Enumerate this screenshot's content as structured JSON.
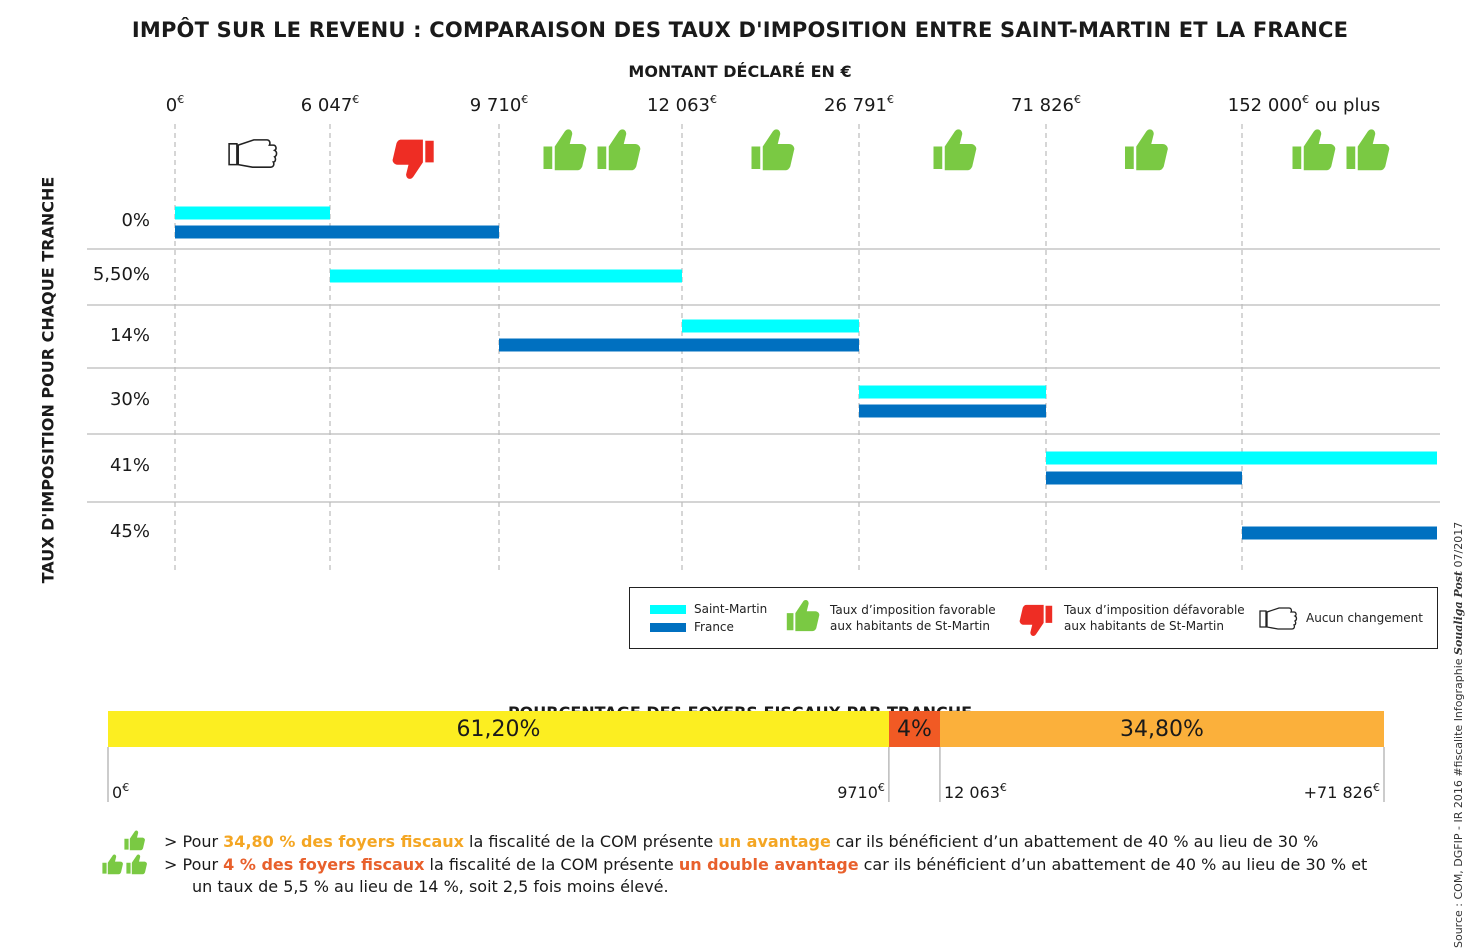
{
  "title": "IMPÔT SUR LE REVENU : COMPARAISON DES TAUX D'IMPOSITION ENTRE SAINT-MARTIN ET LA FRANCE",
  "xlabel": "MONTANT DÉCLARÉ EN €",
  "ylabel": "TAUX D'IMPOSITION POUR CHAQUE TRANCHE",
  "colors": {
    "saint_martin": "#00ffff",
    "france": "#0070c0",
    "favorable": "#7ac943",
    "unfavorable": "#ee2d24",
    "unchanged": "#ffffff",
    "grid": "#bbbbbb",
    "seg_low": "#fcee21",
    "seg_mid": "#f15a24",
    "seg_high": "#fbb03b",
    "hl_a": "#f4a623",
    "hl_b": "#e8602c"
  },
  "chart_data": [
    {
      "type": "bar",
      "orientation": "horizontal-range",
      "title": "IMPÔT SUR LE REVENU : COMPARAISON DES TAUX D'IMPOSITION ENTRE SAINT-MARTIN ET LA FRANCE",
      "xlabel": "MONTANT DÉCLARÉ EN €",
      "ylabel": "TAUX D'IMPOSITION POUR CHAQUE TRANCHE",
      "x_ticks": [
        {
          "value": "0",
          "unit": "€"
        },
        {
          "value": "6 047",
          "unit": "€"
        },
        {
          "value": "9 710",
          "unit": "€"
        },
        {
          "value": "12 063",
          "unit": "€"
        },
        {
          "value": "26 791",
          "unit": "€"
        },
        {
          "value": "71 826",
          "unit": "€"
        },
        {
          "value": "152 000",
          "unit": "€",
          "suffix": " ou plus"
        }
      ],
      "categories": [
        "0%",
        "5,50%",
        "14%",
        "30%",
        "41%",
        "45%"
      ],
      "series": [
        {
          "name": "Saint-Martin",
          "ranges": [
            {
              "category": "0%",
              "from": 0,
              "to": 6047
            },
            {
              "category": "5,50%",
              "from": 6047,
              "to": 12063
            },
            {
              "category": "14%",
              "from": 12063,
              "to": 26791
            },
            {
              "category": "30%",
              "from": 26791,
              "to": 71826
            },
            {
              "category": "41%",
              "from": 71826,
              "to": "152 000 ou plus"
            }
          ]
        },
        {
          "name": "France",
          "ranges": [
            {
              "category": "0%",
              "from": 0,
              "to": 9710
            },
            {
              "category": "14%",
              "from": 9710,
              "to": 26791
            },
            {
              "category": "30%",
              "from": 26791,
              "to": 71826
            },
            {
              "category": "41%",
              "from": 71826,
              "to": 152000
            },
            {
              "category": "45%",
              "from": 152000,
              "to": "152 000 ou plus"
            }
          ]
        }
      ],
      "band_icons": [
        "neutral",
        "unfavorable",
        "favorable-double",
        "favorable",
        "favorable",
        "favorable",
        "favorable-double"
      ],
      "legend": {
        "placement": "bottom-right",
        "items": [
          {
            "label": "Saint-Martin",
            "icon": "swatch-cyan"
          },
          {
            "label": "France",
            "icon": "swatch-blue"
          },
          {
            "label": "Taux d’imposition favorable",
            "label2": "aux habitants de St-Martin",
            "icon": "thumbs-up-icon"
          },
          {
            "label": "Taux d’imposition défavorable",
            "label2": "aux habitants de St-Martin",
            "icon": "thumbs-down-icon"
          },
          {
            "label": "Aucun changement",
            "icon": "thumb-neutral-icon"
          }
        ]
      },
      "grid": true
    },
    {
      "type": "bar",
      "orientation": "stacked-horizontal",
      "title": "POURCENTAGE DES FOYERS FISCAUX PAR TRANCHE",
      "segments": [
        {
          "label": "61,20%",
          "value": 61.2
        },
        {
          "label": "4%",
          "value": 4.0
        },
        {
          "label": "34,80%",
          "value": 34.8
        }
      ],
      "ticks": [
        {
          "value": "0",
          "unit": "€"
        },
        {
          "value": "9710",
          "unit": "€"
        },
        {
          "value": "12 063",
          "unit": "€"
        },
        {
          "value": "+71 826",
          "unit": "€"
        }
      ]
    }
  ],
  "notes": [
    {
      "prefix": "> Pour ",
      "highlight": "34,80 % des foyers fiscaux",
      "mid": " la fiscalité de la COM présente ",
      "highlight2": "un avantage",
      "suffix": " car ils bénéficient d’un abattement de 40 % au lieu de 30 %"
    },
    {
      "prefix": "> Pour ",
      "highlight": "4 % des foyers fiscaux",
      "mid": " la fiscalité de la COM présente ",
      "highlight2": "un double avantage",
      "suffix": " car ils bénéficient d’un abattement de 40 % au lieu de 30 % et",
      "line2": "un taux de 5,5 % au lieu de 14 %, soit 2,5 fois moins élevé."
    }
  ],
  "credit": {
    "source": "Source : COM, DGFIP - IR 2016 #fiscalite    Infographie ",
    "brand": "Soualiga Post",
    "date": "  07/2017"
  }
}
